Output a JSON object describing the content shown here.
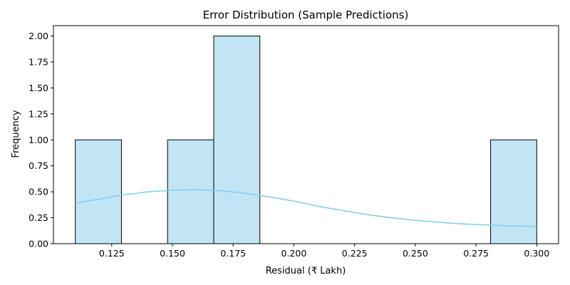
{
  "chart_data": {
    "type": "histogram",
    "title": "Error Distribution (Sample Predictions)",
    "xlabel": "Residual (₹ Lakh)",
    "ylabel": "Frequency",
    "xlim": [
      0.101,
      0.309
    ],
    "ylim": [
      0,
      2.1
    ],
    "bins": [
      {
        "x0": 0.11,
        "x1": 0.129,
        "count": 1
      },
      {
        "x0": 0.129,
        "x1": 0.148,
        "count": 0
      },
      {
        "x0": 0.148,
        "x1": 0.167,
        "count": 1
      },
      {
        "x0": 0.167,
        "x1": 0.186,
        "count": 2
      },
      {
        "x0": 0.186,
        "x1": 0.205,
        "count": 0
      },
      {
        "x0": 0.205,
        "x1": 0.224,
        "count": 0
      },
      {
        "x0": 0.224,
        "x1": 0.243,
        "count": 0
      },
      {
        "x0": 0.243,
        "x1": 0.262,
        "count": 0
      },
      {
        "x0": 0.262,
        "x1": 0.281,
        "count": 0
      },
      {
        "x0": 0.281,
        "x1": 0.3,
        "count": 1
      }
    ],
    "kde": {
      "x": [
        0.11,
        0.12,
        0.13,
        0.14,
        0.15,
        0.16,
        0.17,
        0.18,
        0.19,
        0.2,
        0.21,
        0.22,
        0.23,
        0.24,
        0.25,
        0.26,
        0.27,
        0.28,
        0.29,
        0.3
      ],
      "y": [
        0.39,
        0.43,
        0.47,
        0.5,
        0.515,
        0.52,
        0.51,
        0.485,
        0.45,
        0.41,
        0.36,
        0.32,
        0.28,
        0.25,
        0.225,
        0.205,
        0.19,
        0.18,
        0.17,
        0.165
      ]
    },
    "xticks": [
      0.125,
      0.15,
      0.175,
      0.2,
      0.225,
      0.25,
      0.275,
      0.3
    ],
    "xtick_labels": [
      "0.125",
      "0.150",
      "0.175",
      "0.200",
      "0.225",
      "0.250",
      "0.275",
      "0.300"
    ],
    "yticks": [
      0,
      0.25,
      0.5,
      0.75,
      1.0,
      1.25,
      1.5,
      1.75,
      2.0
    ],
    "ytick_labels": [
      "0.00",
      "0.25",
      "0.50",
      "0.75",
      "1.00",
      "1.25",
      "1.50",
      "1.75",
      "2.00"
    ],
    "bar_color": "#c2e5f4",
    "bar_edge_color": "#000000",
    "kde_color": "#87ceeb",
    "grid": false,
    "legend": "none"
  }
}
